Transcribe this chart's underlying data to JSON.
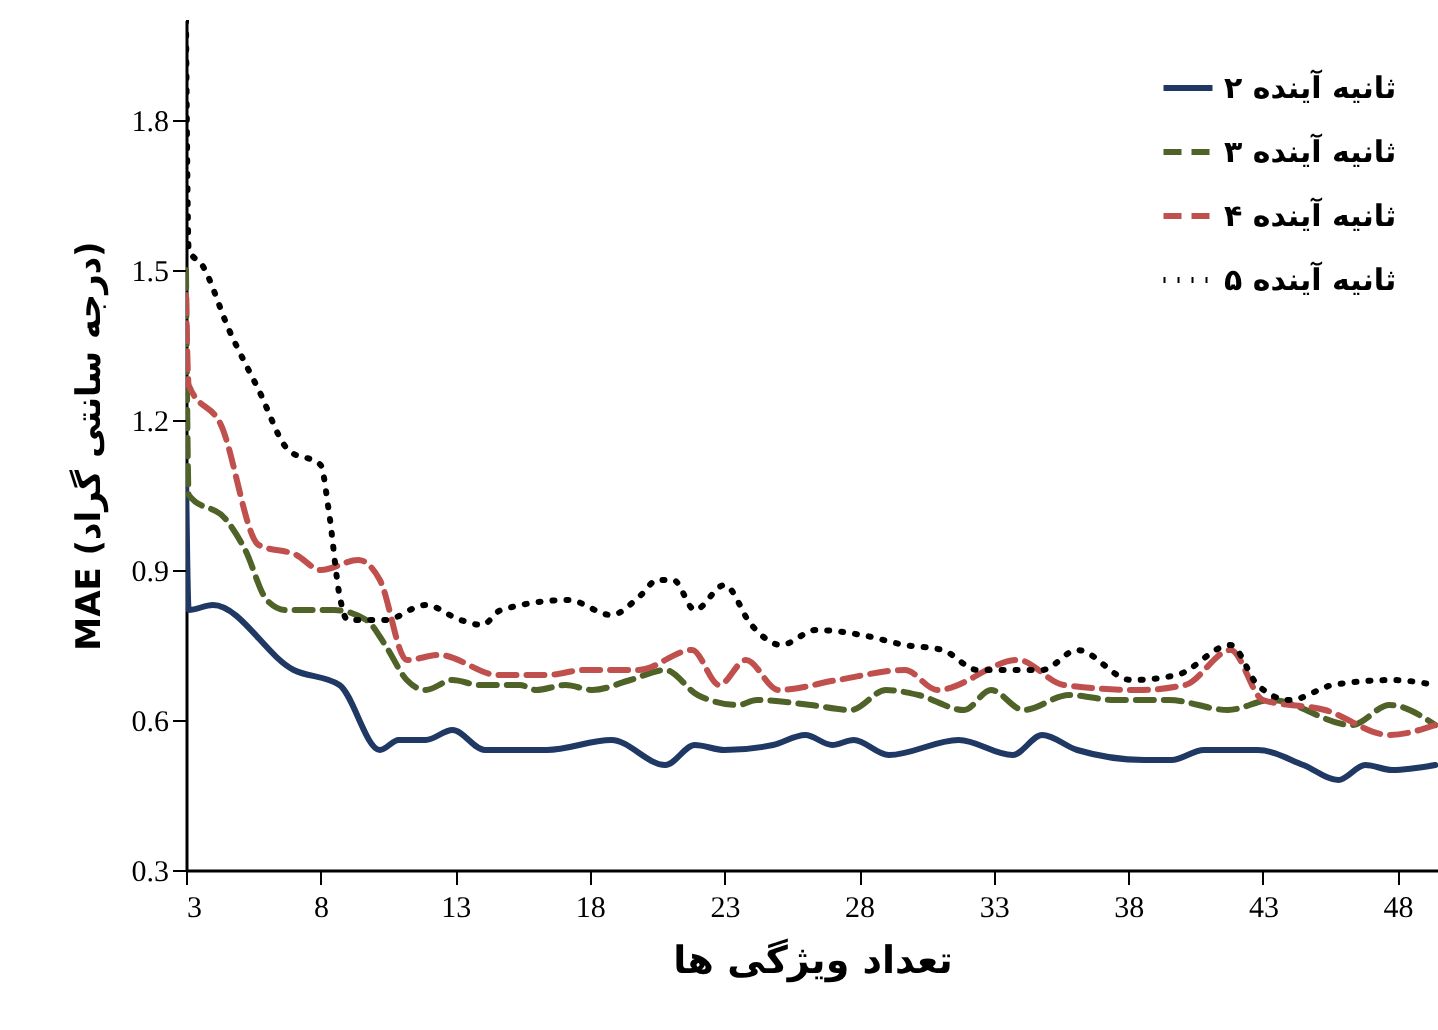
{
  "chart_data": {
    "type": "line",
    "xlabel": "تعداد ویژگی ها",
    "ylabel": "MAE (درجه سانتی گراد)",
    "xlim": [
      3,
      49.5
    ],
    "xticks": [
      3,
      8,
      13,
      18,
      23,
      28,
      33,
      38,
      43,
      48
    ],
    "ylim": [
      0.3,
      2.0
    ],
    "yticks": [
      0.3,
      0.6,
      0.9,
      1.2,
      1.5,
      1.8
    ],
    "grid": false,
    "legend": "top right",
    "marker": "none",
    "series": [
      {
        "name": "۲ ثانیه آینده",
        "color": "#1f3864",
        "line_style": "solid",
        "x": [
          3,
          3.1,
          4,
          7,
          8.7,
          10.2,
          10.9,
          11.9,
          12.9,
          14.1,
          16.4,
          18.8,
          20.8,
          21.9,
          23,
          24.8,
          26,
          27,
          27.8,
          29.1,
          31.7,
          33.7,
          34.8,
          36.1,
          38.6,
          39.6,
          40.8,
          42.8,
          44.5,
          45.8,
          46.8,
          47.8,
          49.4
        ],
        "values": [
          1.1,
          0.82,
          0.83,
          0.7,
          0.67,
          0.54,
          0.56,
          0.56,
          0.58,
          0.54,
          0.54,
          0.56,
          0.51,
          0.55,
          0.54,
          0.55,
          0.57,
          0.55,
          0.56,
          0.53,
          0.56,
          0.53,
          0.57,
          0.54,
          0.52,
          0.52,
          0.54,
          0.54,
          0.51,
          0.48,
          0.51,
          0.5,
          0.51
        ]
      },
      {
        "name": "۳ ثانیه آینده",
        "color": "#4f6228",
        "line_style": "dashed",
        "x": [
          3,
          3.1,
          4.5,
          5.2,
          6,
          6.7,
          8.5,
          9.7,
          10.4,
          11.2,
          11.9,
          12.9,
          13.9,
          15.4,
          16,
          17.1,
          18.1,
          19.5,
          20.8,
          22,
          23.5,
          24.2,
          26.2,
          27.7,
          29,
          30.2,
          31.9,
          32.9,
          34.1,
          35.8,
          37.5,
          39.5,
          41.7,
          43.3,
          46.3,
          47.7,
          49.4
        ],
        "values": [
          1.5,
          1.05,
          1.0,
          0.94,
          0.84,
          0.82,
          0.82,
          0.8,
          0.75,
          0.68,
          0.66,
          0.68,
          0.67,
          0.67,
          0.66,
          0.67,
          0.66,
          0.68,
          0.7,
          0.65,
          0.63,
          0.64,
          0.63,
          0.62,
          0.66,
          0.65,
          0.62,
          0.66,
          0.62,
          0.65,
          0.64,
          0.64,
          0.62,
          0.64,
          0.59,
          0.63,
          0.59
        ]
      },
      {
        "name": "۴ ثانیه آینده",
        "color": "#c0504d",
        "line_style": "dashed",
        "x": [
          3,
          3.1,
          4.3,
          5.7,
          7.1,
          8,
          9.4,
          10.2,
          11.2,
          12.4,
          14.6,
          16.4,
          17.8,
          19.8,
          21.8,
          22.8,
          23.8,
          25,
          27.2,
          29.7,
          30.9,
          33.9,
          35.6,
          38.4,
          40.1,
          41.8,
          43,
          45.3,
          47.7,
          49.4
        ],
        "values": [
          1.45,
          1.27,
          1.19,
          0.95,
          0.93,
          0.9,
          0.92,
          0.88,
          0.72,
          0.73,
          0.69,
          0.69,
          0.7,
          0.7,
          0.74,
          0.67,
          0.72,
          0.66,
          0.68,
          0.7,
          0.66,
          0.72,
          0.67,
          0.66,
          0.67,
          0.74,
          0.64,
          0.62,
          0.57,
          0.59
        ]
      },
      {
        "name": "۵ ثانیه آینده",
        "color": "#000000",
        "line_style": "dotted",
        "x": [
          3,
          3.1,
          3.6,
          4.6,
          5.7,
          6.8,
          8,
          8.3,
          8.7,
          9,
          10.4,
          11.9,
          13.2,
          14,
          14.7,
          17.2,
          18.8,
          19.9,
          20.5,
          21.1,
          21.9,
          23,
          24,
          25.1,
          26.4,
          28.1,
          29.7,
          31.1,
          32.4,
          33.9,
          34.8,
          36.1,
          38.1,
          39.8,
          41.8,
          42.8,
          44,
          45.6,
          47.8,
          49.4
        ],
        "values": [
          2.0,
          1.54,
          1.51,
          1.38,
          1.26,
          1.14,
          1.11,
          1.02,
          0.85,
          0.8,
          0.8,
          0.83,
          0.8,
          0.79,
          0.82,
          0.84,
          0.81,
          0.85,
          0.88,
          0.88,
          0.82,
          0.87,
          0.79,
          0.75,
          0.78,
          0.77,
          0.75,
          0.74,
          0.7,
          0.7,
          0.7,
          0.74,
          0.68,
          0.69,
          0.75,
          0.67,
          0.64,
          0.67,
          0.68,
          0.67
        ]
      }
    ]
  }
}
